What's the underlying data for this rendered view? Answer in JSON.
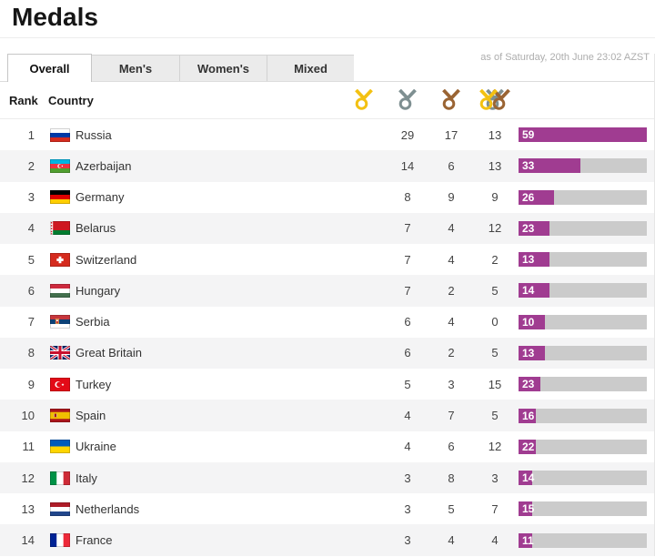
{
  "page": {
    "title": "Medals",
    "timestamp": "as of Saturday, 20th June 23:02 AZST"
  },
  "tabs": [
    {
      "label": "Overall",
      "active": true
    },
    {
      "label": "Men's",
      "active": false
    },
    {
      "label": "Women's",
      "active": false
    },
    {
      "label": "Mixed",
      "active": false
    }
  ],
  "table": {
    "rank_header": "Rank",
    "country_header": "Country",
    "column_icons": [
      "gold-medal-icon",
      "silver-medal-icon",
      "bronze-medal-icon",
      "total-medals-icon"
    ],
    "max_gold": 29,
    "rows": [
      {
        "rank": 1,
        "country": "Russia",
        "flag": "ru",
        "gold": 29,
        "silver": 17,
        "bronze": 13,
        "total": 59
      },
      {
        "rank": 2,
        "country": "Azerbaijan",
        "flag": "az",
        "gold": 14,
        "silver": 6,
        "bronze": 13,
        "total": 33
      },
      {
        "rank": 3,
        "country": "Germany",
        "flag": "de",
        "gold": 8,
        "silver": 9,
        "bronze": 9,
        "total": 26
      },
      {
        "rank": 4,
        "country": "Belarus",
        "flag": "by",
        "gold": 7,
        "silver": 4,
        "bronze": 12,
        "total": 23
      },
      {
        "rank": 5,
        "country": "Switzerland",
        "flag": "ch",
        "gold": 7,
        "silver": 4,
        "bronze": 2,
        "total": 13
      },
      {
        "rank": 6,
        "country": "Hungary",
        "flag": "hu",
        "gold": 7,
        "silver": 2,
        "bronze": 5,
        "total": 14
      },
      {
        "rank": 7,
        "country": "Serbia",
        "flag": "rs",
        "gold": 6,
        "silver": 4,
        "bronze": 0,
        "total": 10
      },
      {
        "rank": 8,
        "country": "Great Britain",
        "flag": "gb",
        "gold": 6,
        "silver": 2,
        "bronze": 5,
        "total": 13
      },
      {
        "rank": 9,
        "country": "Turkey",
        "flag": "tr",
        "gold": 5,
        "silver": 3,
        "bronze": 15,
        "total": 23
      },
      {
        "rank": 10,
        "country": "Spain",
        "flag": "es",
        "gold": 4,
        "silver": 7,
        "bronze": 5,
        "total": 16
      },
      {
        "rank": 11,
        "country": "Ukraine",
        "flag": "ua",
        "gold": 4,
        "silver": 6,
        "bronze": 12,
        "total": 22
      },
      {
        "rank": 12,
        "country": "Italy",
        "flag": "it",
        "gold": 3,
        "silver": 8,
        "bronze": 3,
        "total": 14
      },
      {
        "rank": 13,
        "country": "Netherlands",
        "flag": "nl",
        "gold": 3,
        "silver": 5,
        "bronze": 7,
        "total": 15
      },
      {
        "rank": 14,
        "country": "France",
        "flag": "fr",
        "gold": 3,
        "silver": 4,
        "bronze": 4,
        "total": 11
      }
    ]
  },
  "colors": {
    "bar_fill": "#a03c91",
    "bar_track": "#cbcbcb",
    "gold": "#f3c112",
    "silver": "#7e8f91",
    "bronze": "#9a6433",
    "row_alt": "#f4f4f5"
  }
}
